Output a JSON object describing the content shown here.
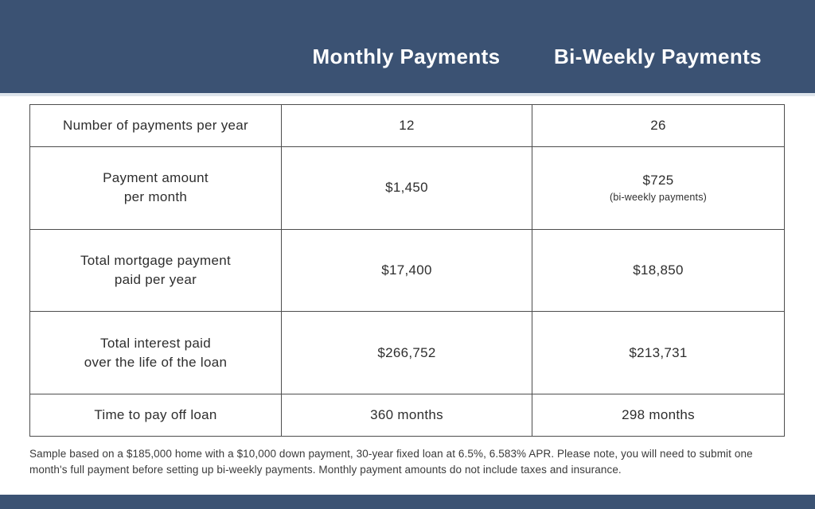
{
  "colors": {
    "band_navy": "#3b5273",
    "band_edge_light": "#dde4eb",
    "table_border": "#4d4d4d",
    "text_dark": "#2e2e2e"
  },
  "header": {
    "monthly_label": "Monthly Payments",
    "biweekly_label": "Bi-Weekly Payments"
  },
  "table": {
    "rows": [
      {
        "label": "Number of payments per year",
        "monthly": "12",
        "biweekly": "26",
        "note": ""
      },
      {
        "label": "Payment amount\nper month",
        "monthly": "$1,450",
        "biweekly": "$725",
        "note": "(bi-weekly payments)"
      },
      {
        "label": "Total mortgage payment\npaid per year",
        "monthly": "$17,400",
        "biweekly": "$18,850",
        "note": ""
      },
      {
        "label": "Total interest paid\nover the life of the loan",
        "monthly": "$266,752",
        "biweekly": "$213,731",
        "note": ""
      },
      {
        "label": "Time to pay off loan",
        "monthly": "360 months",
        "biweekly": "298 months",
        "note": ""
      }
    ]
  },
  "footnote": "Sample based on a $185,000 home with a $10,000 down payment, 30-year fixed loan at 6.5%, 6.583% APR. Please note, you will need to submit one month's full payment before setting up bi-weekly payments. Monthly payment amounts do not include taxes and insurance.",
  "chart_data": {
    "type": "table",
    "title": "",
    "columns": [
      "",
      "Monthly Payments",
      "Bi-Weekly Payments"
    ],
    "rows": [
      [
        "Number of payments per year",
        "12",
        "26"
      ],
      [
        "Payment amount per month",
        "$1,450",
        "$725 (bi-weekly payments)"
      ],
      [
        "Total mortgage payment paid per year",
        "$17,400",
        "$18,850"
      ],
      [
        "Total interest paid over the life of the loan",
        "$266,752",
        "$213,731"
      ],
      [
        "Time to pay off loan",
        "360 months",
        "298 months"
      ]
    ],
    "footnote": "Sample based on a $185,000 home with a $10,000 down payment, 30-year fixed loan at 6.5%, 6.583% APR. Please note, you will need to submit one month's full payment before setting up bi-weekly payments. Monthly payment amounts do not include taxes and insurance."
  }
}
